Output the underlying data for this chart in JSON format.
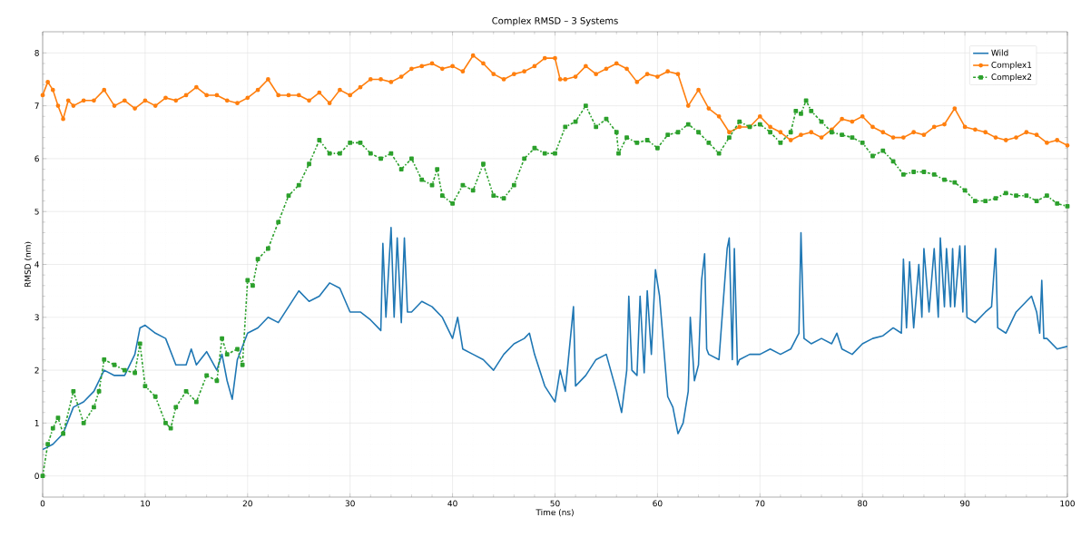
{
  "chart_data": {
    "type": "line",
    "title": "Complex RMSD – 3 Systems",
    "xlabel": "Time (ns)",
    "ylabel": "RMSD (nm)",
    "xlim": [
      0,
      100
    ],
    "ylim": [
      -0.4,
      8.4
    ],
    "xticks": [
      0,
      10,
      20,
      30,
      40,
      50,
      60,
      70,
      80,
      90,
      100
    ],
    "yticks": [
      0,
      1,
      2,
      3,
      4,
      5,
      6,
      7,
      8
    ],
    "grid": true,
    "legend": "top right",
    "series": [
      {
        "name": "Wild",
        "color": "#1f77b4",
        "marker": "none",
        "line_style": "solid",
        "x": [
          0,
          1,
          2,
          3,
          4,
          5,
          6,
          7,
          8,
          9,
          9.5,
          10,
          11,
          12,
          13,
          14,
          14.5,
          15,
          16,
          17,
          17.5,
          18,
          18.5,
          19,
          20,
          21,
          22,
          23,
          24,
          25,
          26,
          27,
          28,
          29,
          30,
          31,
          32,
          33,
          33.2,
          33.5,
          34,
          34.3,
          34.6,
          35,
          35.3,
          35.6,
          36,
          37,
          38,
          39,
          40,
          40.5,
          41,
          42,
          43,
          44,
          45,
          46,
          47,
          47.5,
          48,
          49,
          50,
          50.5,
          51,
          51.8,
          52,
          53,
          54,
          55,
          56,
          56.5,
          57,
          57.2,
          57.5,
          58,
          58.3,
          58.7,
          59,
          59.4,
          59.8,
          60.2,
          61,
          61.5,
          62,
          62.5,
          63,
          63.2,
          63.6,
          64,
          64.3,
          64.6,
          64.8,
          65,
          66,
          66.8,
          67,
          67.3,
          67.5,
          67.8,
          68,
          69,
          70,
          71,
          72,
          73,
          73.8,
          74,
          74.3,
          75,
          76,
          77,
          77.5,
          78,
          79,
          80,
          81,
          82,
          83,
          83.8,
          84,
          84.3,
          84.6,
          85,
          85.5,
          85.8,
          86,
          86.5,
          87,
          87.4,
          87.6,
          88,
          88.2,
          88.6,
          88.8,
          89,
          89.5,
          89.8,
          90,
          90.2,
          91,
          92,
          92.6,
          93,
          93.2,
          94,
          95,
          96,
          96.5,
          97,
          97.3,
          97.5,
          97.7,
          98,
          99,
          100
        ],
        "values": [
          0.5,
          0.6,
          0.8,
          1.3,
          1.4,
          1.6,
          2.0,
          1.9,
          1.9,
          2.3,
          2.8,
          2.85,
          2.7,
          2.6,
          2.1,
          2.1,
          2.4,
          2.1,
          2.35,
          2.0,
          2.3,
          1.8,
          1.45,
          2.2,
          2.7,
          2.8,
          3.0,
          2.9,
          3.2,
          3.5,
          3.3,
          3.4,
          3.65,
          3.55,
          3.1,
          3.1,
          2.95,
          2.75,
          4.4,
          3.0,
          4.7,
          3.0,
          4.5,
          2.9,
          4.5,
          3.1,
          3.1,
          3.3,
          3.2,
          3.0,
          2.6,
          3.0,
          2.4,
          2.3,
          2.2,
          2.0,
          2.3,
          2.5,
          2.6,
          2.7,
          2.3,
          1.7,
          1.4,
          2.0,
          1.6,
          3.2,
          1.7,
          1.9,
          2.2,
          2.3,
          1.6,
          1.2,
          2.0,
          3.4,
          2.0,
          1.9,
          3.4,
          1.95,
          3.5,
          2.3,
          3.9,
          3.4,
          1.5,
          1.3,
          0.8,
          1.0,
          1.6,
          3.0,
          1.8,
          2.1,
          3.7,
          4.2,
          2.4,
          2.3,
          2.2,
          4.3,
          4.5,
          2.2,
          4.3,
          2.1,
          2.2,
          2.3,
          2.3,
          2.4,
          2.3,
          2.4,
          2.7,
          4.6,
          2.6,
          2.5,
          2.6,
          2.5,
          2.7,
          2.4,
          2.3,
          2.5,
          2.6,
          2.65,
          2.8,
          2.7,
          4.1,
          2.8,
          4.05,
          2.8,
          4.0,
          3.0,
          4.3,
          3.1,
          4.3,
          3.0,
          4.5,
          3.2,
          4.3,
          3.2,
          4.3,
          3.2,
          4.35,
          3.1,
          4.35,
          3.0,
          2.9,
          3.1,
          3.2,
          4.3,
          2.8,
          2.7,
          3.1,
          3.3,
          3.4,
          3.1,
          2.7,
          3.7,
          2.6,
          2.6,
          2.4,
          2.45
        ]
      },
      {
        "name": "Complex1",
        "color": "#ff7f0e",
        "marker": "circle",
        "line_style": "solid",
        "x": [
          0,
          0.5,
          1,
          1.5,
          2,
          2.5,
          3,
          4,
          5,
          6,
          7,
          8,
          9,
          10,
          11,
          12,
          13,
          14,
          15,
          16,
          17,
          18,
          19,
          20,
          21,
          22,
          23,
          24,
          25,
          26,
          27,
          28,
          29,
          30,
          31,
          32,
          33,
          34,
          35,
          36,
          37,
          38,
          39,
          40,
          41,
          42,
          43,
          44,
          45,
          46,
          47,
          48,
          49,
          50,
          50.5,
          51,
          52,
          53,
          54,
          55,
          56,
          57,
          58,
          59,
          60,
          61,
          62,
          63,
          64,
          65,
          66,
          67,
          68,
          69,
          70,
          71,
          72,
          73,
          74,
          75,
          76,
          77,
          78,
          79,
          80,
          81,
          82,
          83,
          84,
          85,
          86,
          87,
          88,
          89,
          90,
          91,
          92,
          93,
          94,
          95,
          96,
          97,
          98,
          99,
          100
        ],
        "values": [
          7.2,
          7.45,
          7.3,
          7.0,
          6.75,
          7.1,
          7.0,
          7.1,
          7.1,
          7.3,
          7.0,
          7.1,
          6.95,
          7.1,
          7.0,
          7.15,
          7.1,
          7.2,
          7.35,
          7.2,
          7.2,
          7.1,
          7.05,
          7.15,
          7.3,
          7.5,
          7.2,
          7.2,
          7.2,
          7.1,
          7.25,
          7.05,
          7.3,
          7.2,
          7.35,
          7.5,
          7.5,
          7.45,
          7.55,
          7.7,
          7.75,
          7.8,
          7.7,
          7.75,
          7.65,
          7.95,
          7.8,
          7.6,
          7.5,
          7.6,
          7.65,
          7.75,
          7.9,
          7.9,
          7.5,
          7.5,
          7.55,
          7.75,
          7.6,
          7.7,
          7.8,
          7.7,
          7.45,
          7.6,
          7.55,
          7.65,
          7.6,
          7.0,
          7.3,
          6.95,
          6.8,
          6.5,
          6.6,
          6.6,
          6.8,
          6.6,
          6.5,
          6.35,
          6.45,
          6.5,
          6.4,
          6.55,
          6.75,
          6.7,
          6.8,
          6.6,
          6.5,
          6.4,
          6.4,
          6.5,
          6.45,
          6.6,
          6.65,
          6.95,
          6.6,
          6.55,
          6.5,
          6.4,
          6.35,
          6.4,
          6.5,
          6.45,
          6.3,
          6.35,
          6.25
        ]
      },
      {
        "name": "Complex2",
        "color": "#2ca02c",
        "marker": "square",
        "line_style": "dashed",
        "x": [
          0,
          0.5,
          1,
          1.5,
          2,
          3,
          4,
          5,
          5.5,
          6,
          7,
          8,
          9,
          9.5,
          10,
          11,
          12,
          12.5,
          13,
          14,
          15,
          16,
          17,
          17.5,
          18,
          19,
          19.5,
          20,
          20.5,
          21,
          22,
          23,
          24,
          25,
          26,
          27,
          28,
          29,
          30,
          31,
          32,
          33,
          34,
          35,
          36,
          37,
          38,
          38.5,
          39,
          40,
          41,
          42,
          43,
          44,
          45,
          46,
          47,
          48,
          49,
          50,
          51,
          52,
          53,
          54,
          55,
          56,
          56.2,
          57,
          58,
          59,
          60,
          61,
          62,
          63,
          64,
          65,
          66,
          67,
          68,
          69,
          70,
          71,
          72,
          73,
          73.5,
          74,
          74.5,
          75,
          76,
          77,
          78,
          79,
          80,
          81,
          82,
          83,
          84,
          85,
          86,
          87,
          88,
          89,
          90,
          91,
          92,
          93,
          94,
          95,
          96,
          97,
          98,
          99,
          100
        ],
        "values": [
          0.0,
          0.6,
          0.9,
          1.1,
          0.8,
          1.6,
          1.0,
          1.3,
          1.6,
          2.2,
          2.1,
          2.0,
          1.95,
          2.5,
          1.7,
          1.5,
          1.0,
          0.9,
          1.3,
          1.6,
          1.4,
          1.9,
          1.8,
          2.6,
          2.3,
          2.4,
          2.1,
          3.7,
          3.6,
          4.1,
          4.3,
          4.8,
          5.3,
          5.5,
          5.9,
          6.35,
          6.1,
          6.1,
          6.3,
          6.3,
          6.1,
          6.0,
          6.1,
          5.8,
          6.0,
          5.6,
          5.5,
          5.8,
          5.3,
          5.15,
          5.5,
          5.4,
          5.9,
          5.3,
          5.25,
          5.5,
          6.0,
          6.2,
          6.1,
          6.1,
          6.6,
          6.7,
          7.0,
          6.6,
          6.75,
          6.5,
          6.1,
          6.4,
          6.3,
          6.35,
          6.2,
          6.45,
          6.5,
          6.65,
          6.5,
          6.3,
          6.1,
          6.4,
          6.7,
          6.6,
          6.65,
          6.5,
          6.3,
          6.5,
          6.9,
          6.85,
          7.1,
          6.9,
          6.7,
          6.5,
          6.45,
          6.4,
          6.3,
          6.05,
          6.15,
          5.95,
          5.7,
          5.75,
          5.75,
          5.7,
          5.6,
          5.55,
          5.4,
          5.2,
          5.2,
          5.25,
          5.35,
          5.3,
          5.3,
          5.2,
          5.3,
          5.15,
          5.1
        ]
      }
    ]
  }
}
